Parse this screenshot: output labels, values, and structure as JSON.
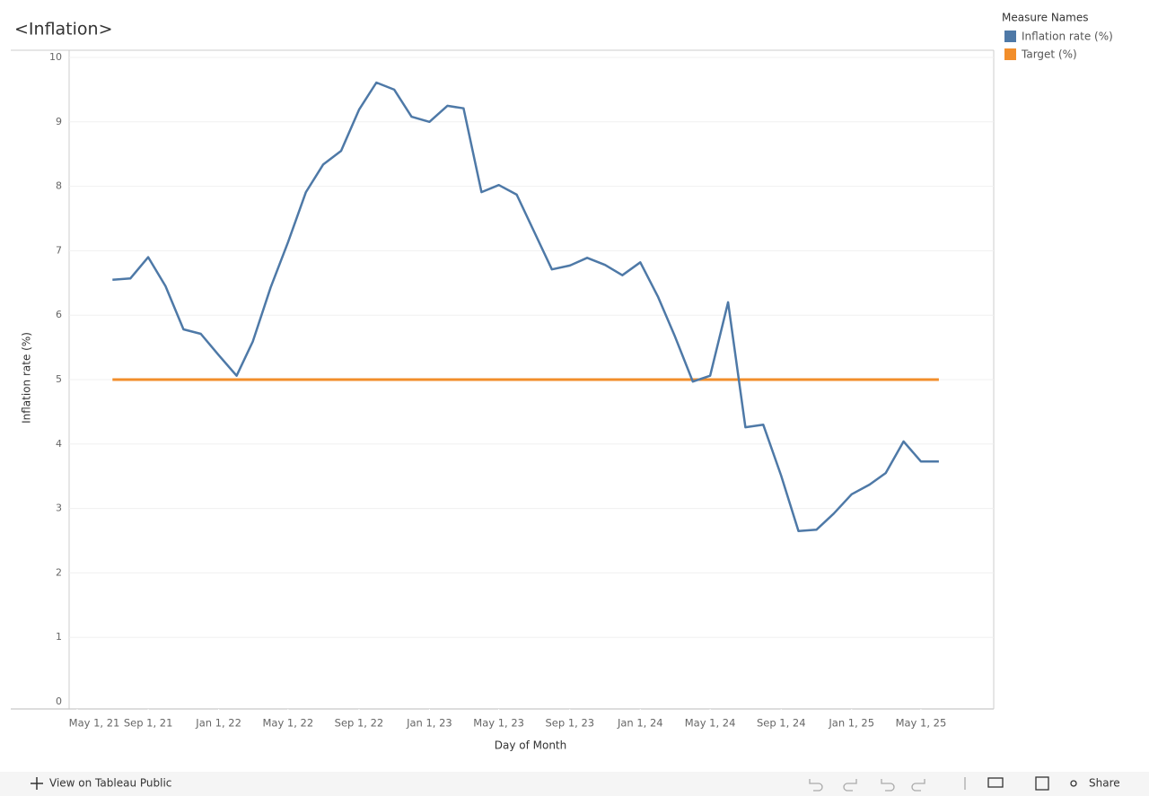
{
  "chart_data": {
    "type": "line",
    "title": "<Inflation>",
    "x_label": "Day of Month",
    "y_label": "Inflation rate (%)",
    "legend_title": "Measure Names",
    "legend": "top-right",
    "x": [
      "2021-07-01",
      "2021-08-01",
      "2021-09-01",
      "2021-10-01",
      "2021-11-01",
      "2021-12-01",
      "2022-01-01",
      "2022-02-01",
      "2022-03-01",
      "2022-04-01",
      "2022-05-01",
      "2022-06-01",
      "2022-07-01",
      "2022-08-01",
      "2022-09-01",
      "2022-10-01",
      "2022-11-01",
      "2022-12-01",
      "2023-01-01",
      "2023-02-01",
      "2023-03-01",
      "2023-04-01",
      "2023-05-01",
      "2023-06-01",
      "2023-07-01",
      "2023-08-01",
      "2023-09-01",
      "2023-10-01",
      "2023-11-01",
      "2023-12-01",
      "2024-01-01",
      "2024-02-01",
      "2024-03-01",
      "2024-04-01",
      "2024-05-01",
      "2024-06-01",
      "2024-07-01",
      "2024-08-01",
      "2024-09-01",
      "2024-10-01",
      "2024-11-01",
      "2024-12-01",
      "2025-01-01",
      "2025-02-01",
      "2025-03-01",
      "2025-04-01",
      "2025-05-01",
      "2025-06-01"
    ],
    "series": [
      {
        "name": "Inflation rate (%)",
        "color": "#4e79a7",
        "values": [
          6.55,
          6.57,
          6.9,
          6.45,
          5.78,
          5.71,
          5.38,
          5.06,
          5.59,
          6.43,
          7.13,
          7.91,
          8.34,
          8.55,
          9.19,
          9.61,
          9.5,
          9.08,
          9.0,
          9.25,
          9.21,
          7.91,
          8.02,
          7.87,
          7.3,
          6.71,
          6.77,
          6.89,
          6.78,
          6.62,
          6.82,
          6.28,
          5.67,
          4.97,
          5.06,
          6.2,
          4.26,
          4.3,
          3.51,
          2.65,
          2.67,
          2.92,
          3.22,
          3.37,
          3.55,
          4.04,
          3.73,
          3.73
        ]
      },
      {
        "name": "Target (%)",
        "color": "#f28e2b",
        "values": [
          5,
          5,
          5,
          5,
          5,
          5,
          5,
          5,
          5,
          5,
          5,
          5,
          5,
          5,
          5,
          5,
          5,
          5,
          5,
          5,
          5,
          5,
          5,
          5,
          5,
          5,
          5,
          5,
          5,
          5,
          5,
          5,
          5,
          5,
          5,
          5,
          5,
          5,
          5,
          5,
          5,
          5,
          5,
          5,
          5,
          5,
          5,
          5
        ]
      }
    ],
    "xlim": [
      "2021-04-17",
      "2025-09-04"
    ],
    "xticks": [
      {
        "value": "2021-05-01",
        "label": "May 1, 21"
      },
      {
        "value": "2021-09-01",
        "label": "Sep 1, 21"
      },
      {
        "value": "2022-01-01",
        "label": "Jan 1, 22"
      },
      {
        "value": "2022-05-01",
        "label": "May 1, 22"
      },
      {
        "value": "2022-09-01",
        "label": "Sep 1, 22"
      },
      {
        "value": "2023-01-01",
        "label": "Jan 1, 23"
      },
      {
        "value": "2023-05-01",
        "label": "May 1, 23"
      },
      {
        "value": "2023-09-01",
        "label": "Sep 1, 23"
      },
      {
        "value": "2024-01-01",
        "label": "Jan 1, 24"
      },
      {
        "value": "2024-05-01",
        "label": "May 1, 24"
      },
      {
        "value": "2024-09-01",
        "label": "Sep 1, 24"
      },
      {
        "value": "2025-01-01",
        "label": "Jan 1, 25"
      },
      {
        "value": "2025-05-01",
        "label": "May 1, 25"
      }
    ],
    "ylim": [
      0,
      10
    ],
    "yticks": [
      0,
      1,
      2,
      3,
      4,
      5,
      6,
      7,
      8,
      9,
      10
    ],
    "grid": true
  },
  "toolbar": {
    "view_link": "View on Tableau Public",
    "share": "Share"
  }
}
